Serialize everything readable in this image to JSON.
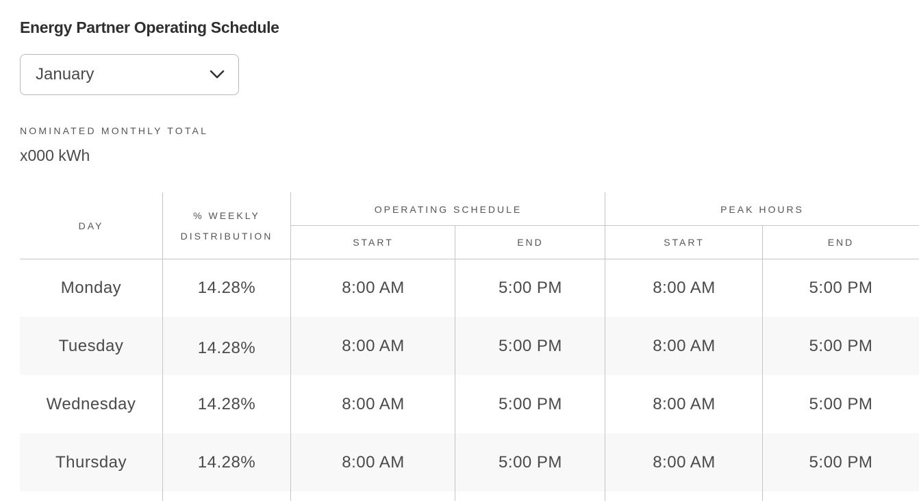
{
  "page": {
    "title": "Energy Partner Operating Schedule"
  },
  "month_select": {
    "value": "January",
    "icon": "chevron-down-icon"
  },
  "monthly_total": {
    "label": "NOMINATED MONTHLY TOTAL",
    "value": "x000 kWh"
  },
  "table": {
    "headers": {
      "day": "DAY",
      "weekly_distribution": "% WEEKLY DISTRIBUTION",
      "operating_schedule": "OPERATING SCHEDULE",
      "peak_hours": "PEAK HOURS",
      "start": "START",
      "end": "END"
    },
    "rows": [
      {
        "day": "Monday",
        "pct": "14.28%",
        "op_start": "8:00 AM",
        "op_end": "5:00 PM",
        "peak_start": "8:00 AM",
        "peak_end": "5:00 PM"
      },
      {
        "day": "Tuesday",
        "pct": "14.28%",
        "op_start": "8:00 AM",
        "op_end": "5:00 PM",
        "peak_start": "8:00 AM",
        "peak_end": "5:00 PM"
      },
      {
        "day": "Wednesday",
        "pct": "14.28%",
        "op_start": "8:00 AM",
        "op_end": "5:00 PM",
        "peak_start": "8:00 AM",
        "peak_end": "5:00 PM"
      },
      {
        "day": "Thursday",
        "pct": "14.28%",
        "op_start": "8:00 AM",
        "op_end": "5:00 PM",
        "peak_start": "8:00 AM",
        "peak_end": "5:00 PM"
      }
    ]
  },
  "colors": {
    "text": "#4a4a4a",
    "border": "#c4c4c4",
    "alt_row": "#f8f8f8"
  }
}
